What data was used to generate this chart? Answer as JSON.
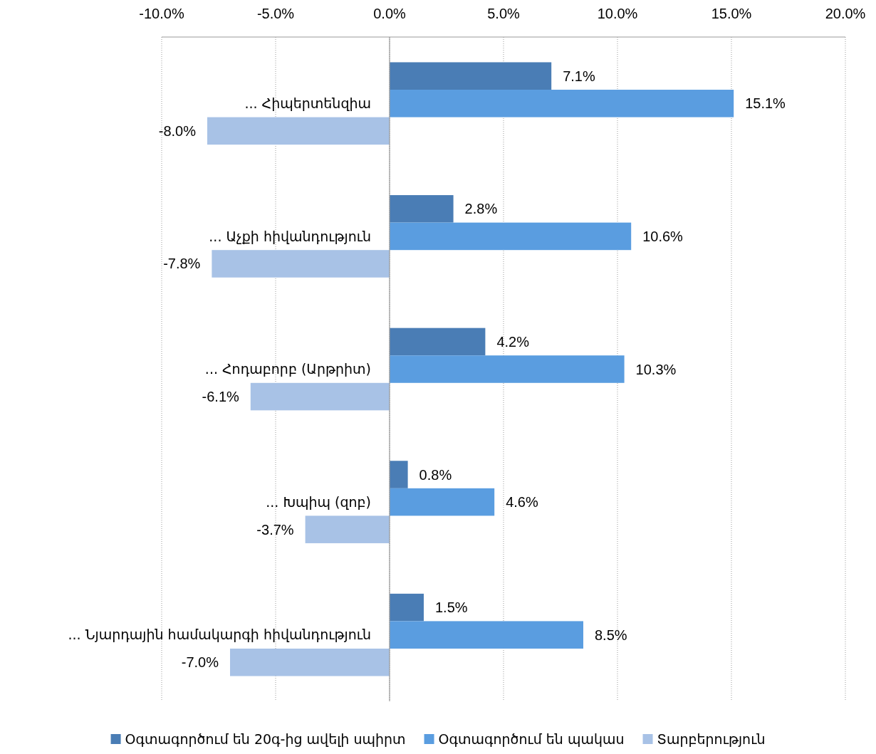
{
  "chart_data": {
    "type": "bar",
    "orientation": "horizontal",
    "categories": [
      "...  Հիպերտենզիա",
      "... Աչքի հիվանդություն",
      "... Հոդաբորբ (Արթրիտ)",
      "... Խպիպ (զոբ)",
      "... Նյարդային համակարգի հիվանդություն"
    ],
    "series": [
      {
        "name": "Օգտագործում են 20գ-ից ավելի սպիրտ",
        "color": "#4a7db5",
        "values": [
          7.1,
          2.8,
          4.2,
          0.8,
          1.5
        ],
        "value_labels": [
          "7.1%",
          "2.8%",
          "4.2%",
          "0.8%",
          "1.5%"
        ]
      },
      {
        "name": "Օգտագործում են պակաս",
        "color": "#5a9de0",
        "values": [
          15.1,
          10.6,
          10.3,
          4.6,
          8.5
        ],
        "value_labels": [
          "15.1%",
          "10.6%",
          "10.3%",
          "4.6%",
          "8.5%"
        ]
      },
      {
        "name": "Տարբերություն",
        "color": "#a8c2e6",
        "values": [
          -8.0,
          -7.8,
          -6.1,
          -3.7,
          -7.0
        ],
        "value_labels": [
          "-8.0%",
          "-7.8%",
          "-6.1%",
          "-3.7%",
          "-7.0%"
        ]
      }
    ],
    "xlim": [
      -10,
      20
    ],
    "xticks": [
      {
        "value": -10,
        "label": "-10.0%"
      },
      {
        "value": -5,
        "label": "-5.0%"
      },
      {
        "value": 0,
        "label": "0.0%"
      },
      {
        "value": 5,
        "label": "5.0%"
      },
      {
        "value": 10,
        "label": "10.0%"
      },
      {
        "value": 15,
        "label": "15.0%"
      },
      {
        "value": 20,
        "label": "20.0%"
      }
    ],
    "grid": "x",
    "legend": "bottom"
  }
}
